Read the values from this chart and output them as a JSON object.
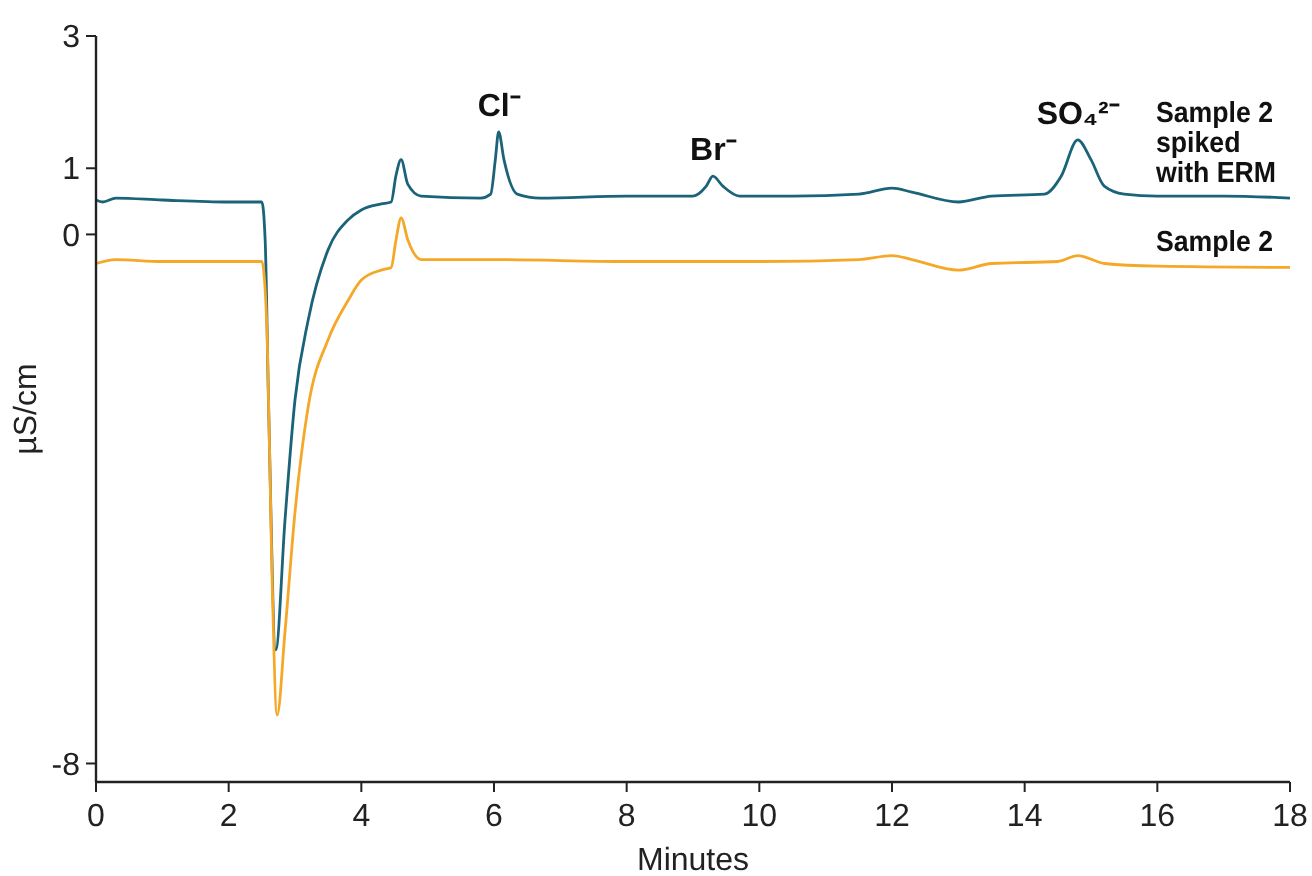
{
  "chart_data": {
    "type": "line",
    "xlabel": "Minutes",
    "ylabel": "µS/cm",
    "xlim": [
      0,
      18
    ],
    "xticks": [
      0,
      2,
      4,
      6,
      8,
      10,
      12,
      14,
      16,
      18
    ],
    "ylim": [
      -8.28,
      3
    ],
    "yticks": [
      3,
      1,
      0,
      -8
    ],
    "grid": false,
    "legend": false,
    "marker": "none",
    "line_style": "solid",
    "series": [
      {
        "name": "Sample 2 spiked with ERM",
        "color": "#1a6378",
        "x": [
          0,
          0.1,
          0.3,
          1,
          2,
          2.5,
          2.55,
          2.6,
          2.71,
          2.85,
          3,
          3.2,
          3.5,
          3.8,
          4,
          4.3,
          4.45,
          4.52,
          4.6,
          4.7,
          4.9,
          5.8,
          5.95,
          6.02,
          6.07,
          6.15,
          6.35,
          6.7,
          8,
          9,
          9.2,
          9.3,
          9.45,
          9.7,
          10.5,
          11.5,
          12,
          12.3,
          13,
          13.5,
          14.3,
          14.55,
          14.8,
          15,
          15.2,
          15.5,
          16,
          17,
          18
        ],
        "values": [
          0.52,
          0.49,
          0.55,
          0.52,
          0.49,
          0.49,
          -0.08,
          -2.5,
          -6.28,
          -4.31,
          -2.5,
          -1.29,
          -0.23,
          0.22,
          0.37,
          0.46,
          0.49,
          0.88,
          1.13,
          0.76,
          0.58,
          0.55,
          0.61,
          1.13,
          1.55,
          1.13,
          0.61,
          0.55,
          0.58,
          0.58,
          0.73,
          0.88,
          0.73,
          0.58,
          0.58,
          0.61,
          0.7,
          0.64,
          0.49,
          0.58,
          0.61,
          0.88,
          1.43,
          1.13,
          0.73,
          0.61,
          0.58,
          0.58,
          0.55
        ]
      },
      {
        "name": "Sample 2",
        "color": "#f5a828",
        "x": [
          0,
          0.3,
          1,
          2,
          2.5,
          2.58,
          2.65,
          2.73,
          2.85,
          3,
          3.2,
          3.5,
          3.8,
          4,
          4.3,
          4.45,
          4.52,
          4.6,
          4.7,
          4.9,
          6,
          8,
          10,
          11.5,
          12,
          12.3,
          13,
          13.5,
          14.5,
          14.8,
          15.2,
          16,
          18
        ],
        "values": [
          -0.44,
          -0.38,
          -0.41,
          -0.41,
          -0.41,
          -1.5,
          -5,
          -7.27,
          -6,
          -4.2,
          -2.6,
          -1.59,
          -1,
          -0.69,
          -0.54,
          -0.5,
          -0.1,
          0.25,
          -0.08,
          -0.38,
          -0.38,
          -0.41,
          -0.41,
          -0.38,
          -0.32,
          -0.38,
          -0.54,
          -0.44,
          -0.41,
          -0.32,
          -0.44,
          -0.48,
          -0.5
        ]
      }
    ],
    "annotations": [
      {
        "text": "Cl⁻",
        "x": 6.07,
        "y": 1.55
      },
      {
        "text": "Br⁻",
        "x": 9.3,
        "y": 0.88
      },
      {
        "text": "SO₄²⁻",
        "x": 14.8,
        "y": 1.43
      }
    ]
  }
}
